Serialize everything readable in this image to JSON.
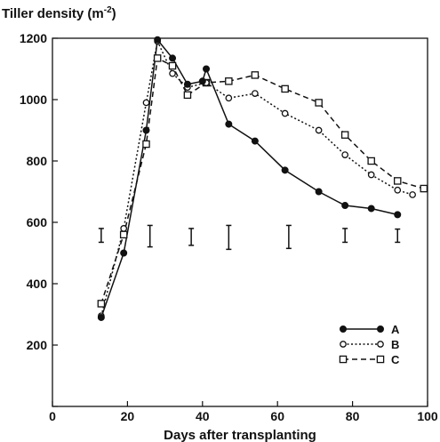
{
  "chart_data": {
    "type": "line",
    "title": "",
    "ylabel_text": "Tiller density (m",
    "ylabel_sup": "-2",
    "ylabel_close": ")",
    "xlabel": "Days after transplanting",
    "xlim": [
      0,
      100
    ],
    "ylim": [
      0,
      1200
    ],
    "xticks": [
      0,
      20,
      40,
      60,
      80,
      100
    ],
    "yticks": [
      200,
      400,
      600,
      800,
      1000,
      1200
    ],
    "grid": false,
    "legend_position": "bottom-right",
    "series": [
      {
        "name": "A",
        "marker": "filled-circle",
        "line_style": "solid",
        "x": [
          13,
          19,
          25,
          28,
          32,
          36,
          40,
          41,
          47,
          54,
          62,
          71,
          78,
          85,
          92
        ],
        "y": [
          290,
          500,
          900,
          1195,
          1135,
          1050,
          1060,
          1100,
          920,
          865,
          770,
          700,
          655,
          645,
          625
        ]
      },
      {
        "name": "B",
        "marker": "open-circle",
        "line_style": "dotted",
        "x": [
          13,
          19,
          25,
          28,
          32,
          36,
          41,
          47,
          54,
          62,
          71,
          78,
          85,
          92,
          96
        ],
        "y": [
          295,
          580,
          990,
          1190,
          1085,
          1040,
          1055,
          1005,
          1020,
          955,
          900,
          820,
          755,
          705,
          690
        ]
      },
      {
        "name": "C",
        "marker": "open-square",
        "line_style": "dashed",
        "x": [
          13,
          19,
          25,
          28,
          32,
          36,
          41,
          47,
          54,
          62,
          71,
          78,
          85,
          92,
          99
        ],
        "y": [
          335,
          560,
          855,
          1135,
          1110,
          1015,
          1055,
          1060,
          1080,
          1035,
          990,
          885,
          800,
          735,
          710
        ]
      }
    ],
    "error_bars": [
      {
        "x": 13,
        "low": 535,
        "high": 580
      },
      {
        "x": 26,
        "low": 520,
        "high": 590
      },
      {
        "x": 37,
        "low": 525,
        "high": 580
      },
      {
        "x": 47,
        "low": 512,
        "high": 590
      },
      {
        "x": 63,
        "low": 515,
        "high": 590
      },
      {
        "x": 78,
        "low": 535,
        "high": 580
      },
      {
        "x": 92,
        "low": 535,
        "high": 578
      }
    ]
  }
}
